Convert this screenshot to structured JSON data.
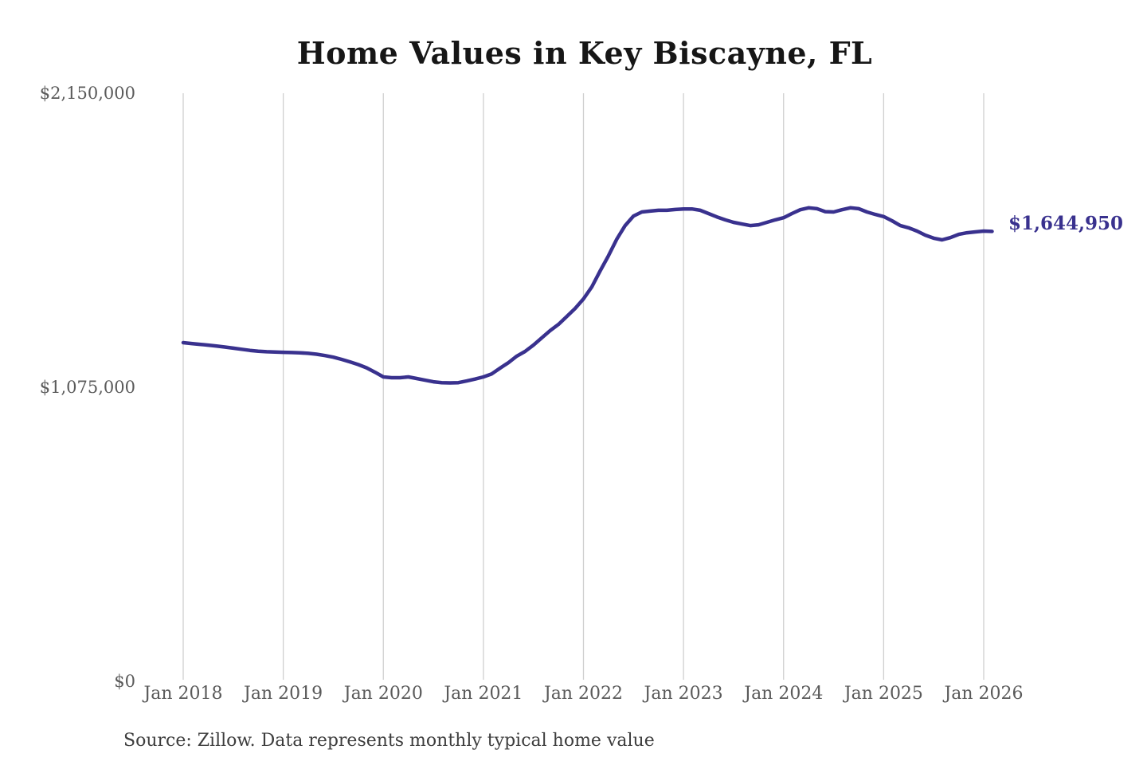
{
  "title": "Home Values in Key Biscayne, FL",
  "annotation": {
    "latest_value_label": "$1,644,950"
  },
  "source_note": "Source: Zillow. Data represents monthly typical home value",
  "colors": {
    "line": "#39318e",
    "annotation_text": "#39318e",
    "grid": "#cfcfcf",
    "axis_text": "#5a5a5a",
    "title_text": "#161616",
    "source_text": "#3d3d3d",
    "background": "#ffffff"
  },
  "chart_data": {
    "type": "line",
    "title": "Home Values in Key Biscayne, FL",
    "series_name": "Typical home value (monthly)",
    "x": [
      "2018-01",
      "2018-02",
      "2018-03",
      "2018-04",
      "2018-05",
      "2018-06",
      "2018-07",
      "2018-08",
      "2018-09",
      "2018-10",
      "2018-11",
      "2018-12",
      "2019-01",
      "2019-02",
      "2019-03",
      "2019-04",
      "2019-05",
      "2019-06",
      "2019-07",
      "2019-08",
      "2019-09",
      "2019-10",
      "2019-11",
      "2019-12",
      "2020-01",
      "2020-02",
      "2020-03",
      "2020-04",
      "2020-05",
      "2020-06",
      "2020-07",
      "2020-08",
      "2020-09",
      "2020-10",
      "2020-11",
      "2020-12",
      "2021-01",
      "2021-02",
      "2021-03",
      "2021-04",
      "2021-05",
      "2021-06",
      "2021-07",
      "2021-08",
      "2021-09",
      "2021-10",
      "2021-11",
      "2021-12",
      "2022-01",
      "2022-02",
      "2022-03",
      "2022-04",
      "2022-05",
      "2022-06",
      "2022-07",
      "2022-08",
      "2022-09",
      "2022-10",
      "2022-11",
      "2022-12",
      "2023-01",
      "2023-02",
      "2023-03",
      "2023-04",
      "2023-05",
      "2023-06",
      "2023-07",
      "2023-08",
      "2023-09",
      "2023-10",
      "2023-11",
      "2023-12",
      "2024-01",
      "2024-02",
      "2024-03",
      "2024-04",
      "2024-05",
      "2024-06",
      "2024-07",
      "2024-08",
      "2024-09",
      "2024-10",
      "2024-11",
      "2024-12",
      "2025-01",
      "2025-02",
      "2025-03",
      "2025-04",
      "2025-05",
      "2025-06",
      "2025-07",
      "2025-08",
      "2025-09",
      "2025-10",
      "2025-11",
      "2025-12",
      "2026-01",
      "2026-02"
    ],
    "values": [
      1238000,
      1235000,
      1232000,
      1229000,
      1226000,
      1222000,
      1218000,
      1214000,
      1210000,
      1207000,
      1205000,
      1204000,
      1203000,
      1202000,
      1201000,
      1199000,
      1196000,
      1191000,
      1185000,
      1177000,
      1168000,
      1158000,
      1146000,
      1130000,
      1113000,
      1110000,
      1110000,
      1113000,
      1107000,
      1101000,
      1095000,
      1092000,
      1091000,
      1092000,
      1098000,
      1105000,
      1113000,
      1124000,
      1145000,
      1165000,
      1189000,
      1206000,
      1229000,
      1256000,
      1282000,
      1305000,
      1334000,
      1363000,
      1398000,
      1442000,
      1500000,
      1556000,
      1617000,
      1666000,
      1701000,
      1716000,
      1719000,
      1722000,
      1722000,
      1725000,
      1727000,
      1727000,
      1722000,
      1710000,
      1698000,
      1687000,
      1678000,
      1672000,
      1666000,
      1669000,
      1678000,
      1687000,
      1695000,
      1710000,
      1724000,
      1731000,
      1728000,
      1717000,
      1716000,
      1724000,
      1731000,
      1728000,
      1716000,
      1707000,
      1699000,
      1684000,
      1666000,
      1658000,
      1646000,
      1631000,
      1620000,
      1614000,
      1622000,
      1634000,
      1640000,
      1643000,
      1646000,
      1644950
    ],
    "final_value": 1644950,
    "end_label": "$1,644,950",
    "x_tick_labels": [
      "Jan 2018",
      "Jan 2019",
      "Jan 2020",
      "Jan 2021",
      "Jan 2022",
      "Jan 2023",
      "Jan 2024",
      "Jan 2025",
      "Jan 2026"
    ],
    "y_tick_labels": [
      "$0",
      "$1,075,000",
      "$2,150,000"
    ],
    "y_tick_values": [
      0,
      1075000,
      2150000
    ],
    "ylim": [
      0,
      2150000
    ],
    "grid": "vertical-only",
    "legend": "none"
  }
}
